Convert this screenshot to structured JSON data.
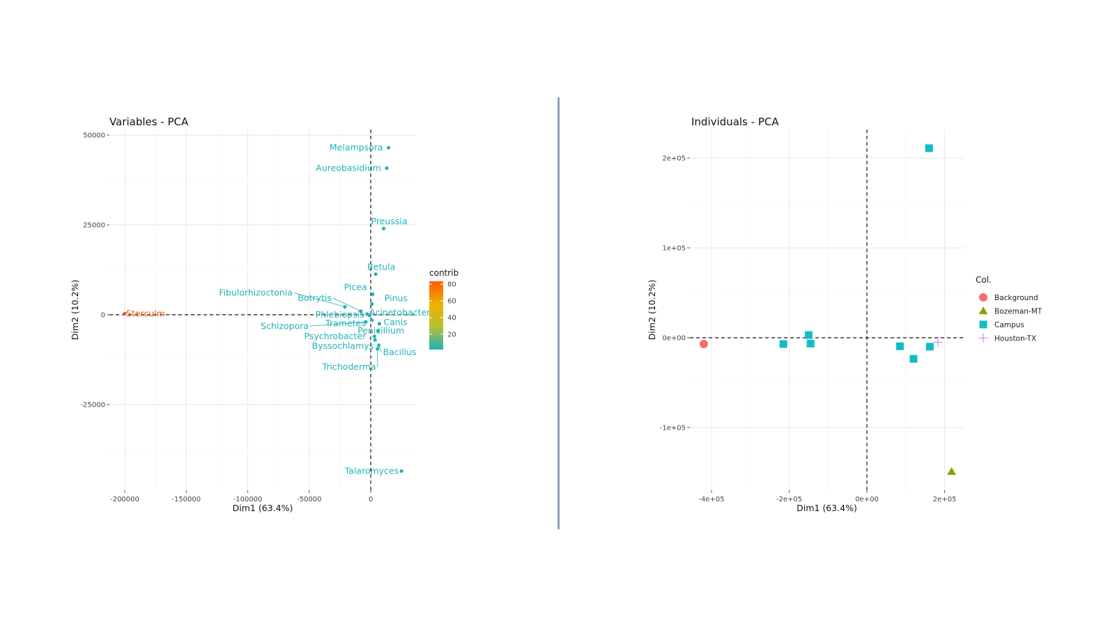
{
  "chart_data": [
    {
      "type": "scatter",
      "title": "Variables - PCA",
      "xlabel": "Dim1 (63.4%)",
      "ylabel": "Dim2 (10.2%)",
      "xlim": [
        -212000,
        38000
      ],
      "ylim": [
        -49000,
        50000
      ],
      "xticks": [
        {
          "value": -200000,
          "label": "-200000"
        },
        {
          "value": -150000,
          "label": "-150000"
        },
        {
          "value": -100000,
          "label": "-100000"
        },
        {
          "value": -50000,
          "label": "-50000"
        },
        {
          "value": 0,
          "label": "0"
        }
      ],
      "yticks": [
        {
          "value": 50000,
          "label": "50000"
        },
        {
          "value": 25000,
          "label": "25000"
        },
        {
          "value": 0,
          "label": "0"
        },
        {
          "value": -25000,
          "label": "-25000"
        }
      ],
      "grid": true,
      "reference_lines": {
        "x": 0,
        "y": 0,
        "style": "dashed"
      },
      "legend": {
        "title": "contrib",
        "type": "gradient",
        "placement": "right",
        "ticks": [
          "80",
          "60",
          "40",
          "20"
        ],
        "colors": [
          "#ff5a00",
          "#f0b000",
          "#b8c030",
          "#20b0b8"
        ]
      },
      "points": [
        {
          "label": "Sterculm",
          "x": -200000,
          "y": 300,
          "contrib": 85,
          "color": "#e85a10"
        },
        {
          "label": "Melampsora",
          "x": 14500,
          "y": 46500,
          "contrib": 14,
          "color": "#20b2b8"
        },
        {
          "label": "Aureobasidium",
          "x": 13000,
          "y": 40800,
          "contrib": 12,
          "color": "#20b2b8"
        },
        {
          "label": "Preussia",
          "x": 10500,
          "y": 24000,
          "contrib": 8,
          "color": "#20b2b8"
        },
        {
          "label": "Betula",
          "x": 4000,
          "y": 11300,
          "contrib": 4,
          "color": "#20b2b8"
        },
        {
          "label": "Picea",
          "x": 1500,
          "y": 5700,
          "contrib": 3,
          "color": "#20b2b8"
        },
        {
          "label": "Pinus",
          "x": 1000,
          "y": 3000,
          "contrib": 3,
          "color": "#20b2b8"
        },
        {
          "label": "Fibulorhizoctonia",
          "x": -21000,
          "y": 2200,
          "contrib": 5,
          "color": "#20b2b8"
        },
        {
          "label": "Botrytis",
          "x": -8000,
          "y": 1000,
          "contrib": 3,
          "color": "#20b2b8"
        },
        {
          "label": "Phlebiopsis",
          "x": -3000,
          "y": 200,
          "contrib": 3,
          "color": "#20b2b8"
        },
        {
          "label": "Acinetobacter",
          "x": -1000,
          "y": -200,
          "contrib": 3,
          "color": "#20b2b8"
        },
        {
          "label": "Schizopora",
          "x": -4000,
          "y": -2000,
          "contrib": 3,
          "color": "#20b2b8"
        },
        {
          "label": "Trametes",
          "x": 1000,
          "y": -1500,
          "contrib": 3,
          "color": "#20b2b8"
        },
        {
          "label": "Canis",
          "x": 7000,
          "y": -2500,
          "contrib": 3,
          "color": "#20b2b8"
        },
        {
          "label": "Psychrobacter",
          "x": 3000,
          "y": -6000,
          "contrib": 3,
          "color": "#20b2b8"
        },
        {
          "label": "Penicillium",
          "x": 6000,
          "y": -4500,
          "contrib": 3,
          "color": "#20b2b8"
        },
        {
          "label": "Byssochlamys",
          "x": 3500,
          "y": -7000,
          "contrib": 3,
          "color": "#20b2b8"
        },
        {
          "label": "Bacillus",
          "x": 6500,
          "y": -8500,
          "contrib": 3,
          "color": "#20b2b8"
        },
        {
          "label": "Trichoderma",
          "x": 5500,
          "y": -9500,
          "contrib": 3,
          "color": "#20b2b8"
        },
        {
          "label": "Talaromyces",
          "x": 25000,
          "y": -43500,
          "contrib": 9,
          "color": "#20b2b8"
        }
      ]
    },
    {
      "type": "scatter",
      "title": "Individuals - PCA",
      "xlabel": "Dim1 (63.4%)",
      "ylabel": "Dim2 (10.2%)",
      "xlim": [
        -450000,
        250000
      ],
      "ylim": [
        -175000,
        230000
      ],
      "xticks": [
        {
          "value": -400000,
          "label": "-4e+05"
        },
        {
          "value": -200000,
          "label": "-2e+05"
        },
        {
          "value": 0,
          "label": "0e+00"
        },
        {
          "value": 200000,
          "label": "2e+05"
        }
      ],
      "yticks": [
        {
          "value": 200000,
          "label": "2e+05"
        },
        {
          "value": 100000,
          "label": "1e+05"
        },
        {
          "value": 0,
          "label": "0e+00"
        },
        {
          "value": -100000,
          "label": "-1e+05"
        }
      ],
      "grid": true,
      "reference_lines": {
        "x": 0,
        "y": 0,
        "style": "dashed"
      },
      "legend": {
        "title": "Col.",
        "placement": "right",
        "entries": [
          {
            "name": "Background",
            "shape": "circle",
            "color": "#f07070"
          },
          {
            "name": "Bozeman-MT",
            "shape": "triangle",
            "color": "#80a800"
          },
          {
            "name": "Campus",
            "shape": "square",
            "color": "#10bcc8"
          },
          {
            "name": "Houston-TX",
            "shape": "plus",
            "color": "#d090e0"
          }
        ]
      },
      "points": [
        {
          "group": "Background",
          "x": -420000,
          "y": -7000
        },
        {
          "group": "Campus",
          "x": -215000,
          "y": -7000
        },
        {
          "group": "Campus",
          "x": -150000,
          "y": 3000
        },
        {
          "group": "Campus",
          "x": -145000,
          "y": -6500
        },
        {
          "group": "Campus",
          "x": 85000,
          "y": -9500
        },
        {
          "group": "Campus",
          "x": 120000,
          "y": -23500
        },
        {
          "group": "Campus",
          "x": 162000,
          "y": -10000
        },
        {
          "group": "Campus",
          "x": 160000,
          "y": 211000
        },
        {
          "group": "Houston-TX",
          "x": 183000,
          "y": -5000
        },
        {
          "group": "Bozeman-MT",
          "x": 218000,
          "y": -149000
        }
      ]
    }
  ]
}
